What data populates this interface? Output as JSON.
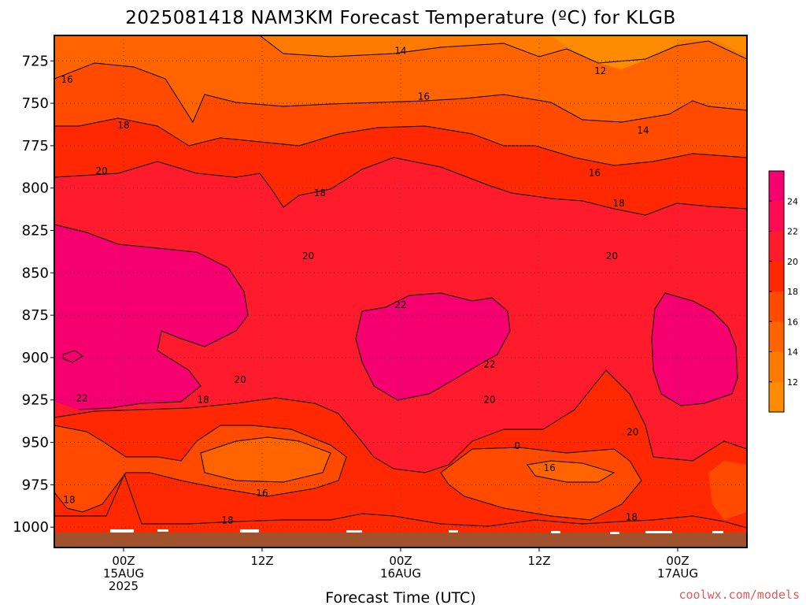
{
  "chart_data": {
    "type": "heatmap",
    "title": "2025081418 NAM3KM Forecast Temperature (ºC) for KLGB",
    "xlabel": "Forecast Time (UTC)",
    "ylabel": "",
    "y_axis": {
      "scale": "pressure (hPa)",
      "inverted": true,
      "range": [
        710,
        1012
      ],
      "ticks": [
        725,
        750,
        775,
        800,
        825,
        850,
        875,
        900,
        925,
        950,
        975,
        1000
      ],
      "tick_labels": [
        "725",
        "750",
        "775",
        "800",
        "825",
        "850",
        "875",
        "900",
        "925",
        "950",
        "975",
        "1000"
      ]
    },
    "x_axis": {
      "range_hours": [
        -6,
        54
      ],
      "ticks": [
        {
          "hour": 0,
          "lines": [
            "00Z",
            "15AUG",
            "2025"
          ]
        },
        {
          "hour": 12,
          "lines": [
            "12Z"
          ]
        },
        {
          "hour": 24,
          "lines": [
            "00Z",
            "16AUG"
          ]
        },
        {
          "hour": 36,
          "lines": [
            "12Z"
          ]
        },
        {
          "hour": 48,
          "lines": [
            "00Z",
            "17AUG"
          ]
        }
      ]
    },
    "grid": true,
    "legend_placement": "right",
    "colorbar": {
      "ticks": [
        "24",
        "22",
        "20",
        "18",
        "16",
        "14",
        "12"
      ],
      "colors": [
        "#f5006e",
        "#ff0a55",
        "#ff1a2c",
        "#ff2800",
        "#ff4a00",
        "#ff6400",
        "#ff7a00",
        "#ff8c00"
      ]
    },
    "contour_labels": [
      {
        "text": "14",
        "hour": 24.0,
        "p": 719
      },
      {
        "text": "12",
        "hour": 41.3,
        "p": 731
      },
      {
        "text": "16",
        "hour": -4.9,
        "p": 736
      },
      {
        "text": "16",
        "hour": 26.0,
        "p": 746
      },
      {
        "text": "18",
        "hour": 0.0,
        "p": 763
      },
      {
        "text": "14",
        "hour": 45.0,
        "p": 766
      },
      {
        "text": "16",
        "hour": 40.8,
        "p": 791
      },
      {
        "text": "20",
        "hour": -1.9,
        "p": 790
      },
      {
        "text": "18",
        "hour": 17.0,
        "p": 803
      },
      {
        "text": "18",
        "hour": 42.9,
        "p": 809
      },
      {
        "text": "20",
        "hour": 16.0,
        "p": 840
      },
      {
        "text": "20",
        "hour": 42.3,
        "p": 840
      },
      {
        "text": "22",
        "hour": 24.0,
        "p": 869
      },
      {
        "text": "22",
        "hour": 31.7,
        "p": 904
      },
      {
        "text": "20",
        "hour": 10.1,
        "p": 913
      },
      {
        "text": "22",
        "hour": -3.6,
        "p": 924
      },
      {
        "text": "18",
        "hour": 6.9,
        "p": 925
      },
      {
        "text": "20",
        "hour": 31.7,
        "p": 925
      },
      {
        "text": "20",
        "hour": 44.1,
        "p": 944
      },
      {
        "text": "0",
        "hour": 34.1,
        "p": 952
      },
      {
        "text": "16",
        "hour": 36.9,
        "p": 965
      },
      {
        "text": "16",
        "hour": 12.0,
        "p": 980
      },
      {
        "text": "18",
        "hour": -4.7,
        "p": 984
      },
      {
        "text": "18",
        "hour": 44.0,
        "p": 994
      },
      {
        "text": "18",
        "hour": 9.0,
        "p": 996
      }
    ]
  },
  "credit": "coolwx.com/models"
}
